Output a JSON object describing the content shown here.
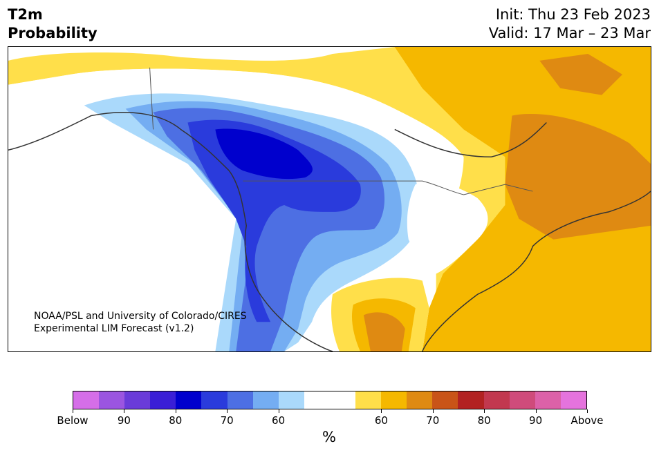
{
  "title": {
    "line1": "T2m",
    "line2": "Probability"
  },
  "validity": {
    "init": "Init: Thu 23 Feb 2023",
    "valid": "Valid: 17 Mar – 23 Mar"
  },
  "credit": {
    "line1": "NOAA/PSL and University of Colorado/CIRES",
    "line2": "Experimental LIM Forecast (v1.2)"
  },
  "colorbar": {
    "colors": [
      "#d56ee8",
      "#9b55e0",
      "#6a3bd9",
      "#3a1fd6",
      "#0000cd",
      "#2a3bdc",
      "#4d6fe3",
      "#74adf2",
      "#aad9fb",
      "#ffffff",
      "#ffffff",
      "#ffdf4a",
      "#f5b800",
      "#df8a12",
      "#c95418",
      "#b22222",
      "#c2384f",
      "#cf4b7b",
      "#dc61a8",
      "#e573dd"
    ],
    "labels": [
      "Below",
      "90",
      "80",
      "70",
      "60",
      "60",
      "70",
      "80",
      "90",
      "Above"
    ],
    "unit": "%"
  },
  "legend_colors": {
    "below_60": "#aad9fb",
    "below_70": "#74adf2",
    "below_80": "#2a3bdc",
    "below_90": "#0000cd",
    "above_60": "#ffdf4a",
    "above_70": "#f5b800",
    "above_80": "#df8a12"
  }
}
